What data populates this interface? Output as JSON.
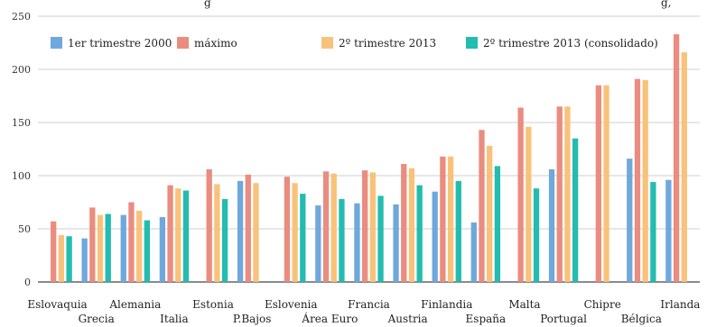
{
  "chart_data": {
    "type": "bar",
    "title": "",
    "title_fragment_left": "g",
    "title_fragment_right": "g,",
    "xlabel": "",
    "ylabel": "",
    "ylim": [
      0,
      250
    ],
    "yticks": [
      "0",
      "50",
      "100",
      "150",
      "200",
      "250"
    ],
    "grid": true,
    "legend_position": "top-left",
    "categories": [
      "Eslovaquia",
      "Grecia",
      "Alemania",
      "Italia",
      "Estonia",
      "P.Bajos",
      "Eslovenia",
      "Área Euro",
      "Francia",
      "Austria",
      "Finlandia",
      "España",
      "Malta",
      "Portugal",
      "Chipre",
      "Bélgica",
      "Irlanda"
    ],
    "series": [
      {
        "name": "1er trimestre 2000",
        "color": "#6fa8dc",
        "values": [
          null,
          41,
          63,
          61,
          null,
          95,
          null,
          72,
          74,
          73,
          85,
          56,
          null,
          106,
          null,
          116,
          96
        ]
      },
      {
        "name": "máximo",
        "color": "#ea8c80",
        "values": [
          57,
          70,
          75,
          91,
          106,
          101,
          99,
          104,
          105,
          111,
          118,
          143,
          164,
          165,
          185,
          191,
          233
        ]
      },
      {
        "name": "2º trimestre 2013",
        "color": "#f9c27a",
        "values": [
          44,
          63,
          67,
          88,
          92,
          93,
          93,
          102,
          103,
          107,
          118,
          128,
          146,
          165,
          185,
          190,
          216
        ]
      },
      {
        "name": "2º trimestre 2013 (consolidado)",
        "color": "#22bcb0",
        "values": [
          43,
          64,
          58,
          86,
          78,
          null,
          83,
          78,
          81,
          91,
          95,
          109,
          88,
          135,
          null,
          94,
          null
        ]
      }
    ]
  }
}
